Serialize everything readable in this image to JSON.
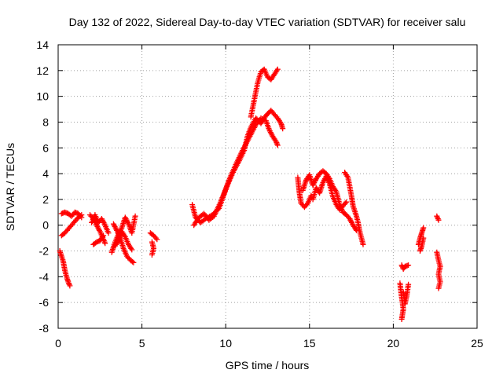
{
  "chart_data": {
    "type": "scatter",
    "title": "Day 132 of 2022, Sidereal Day-to-day VTEC variation (SDTVAR) for receiver salu",
    "xlabel": "GPS time / hours",
    "ylabel": "SDTVAR / TECUs",
    "xlim": [
      0,
      25
    ],
    "ylim": [
      -8,
      14
    ],
    "xticks": [
      "0",
      "5",
      "10",
      "15",
      "20",
      "25"
    ],
    "yticks": [
      "-8",
      "-6",
      "-4",
      "-2",
      "0",
      "2",
      "4",
      "6",
      "8",
      "10",
      "12",
      "14"
    ],
    "grid": true,
    "marker": "plus",
    "color": "#ff0000",
    "series": [
      {
        "name": "SDTVAR",
        "tracks": [
          [
            [
              0.2,
              0.9
            ],
            [
              0.4,
              1.0
            ],
            [
              0.6,
              0.9
            ],
            [
              0.8,
              0.7
            ],
            [
              1.0,
              1.0
            ],
            [
              1.2,
              0.9
            ],
            [
              1.4,
              0.6
            ]
          ],
          [
            [
              0.2,
              -0.8
            ],
            [
              0.4,
              -0.6
            ],
            [
              0.6,
              -0.3
            ],
            [
              0.8,
              0.0
            ],
            [
              1.0,
              0.3
            ],
            [
              1.2,
              0.6
            ],
            [
              1.4,
              0.8
            ]
          ],
          [
            [
              0.1,
              -2.0
            ],
            [
              0.3,
              -2.8
            ],
            [
              0.4,
              -3.5
            ],
            [
              0.5,
              -4.0
            ],
            [
              0.6,
              -4.4
            ],
            [
              0.7,
              -4.7
            ]
          ],
          [
            [
              1.9,
              0.8
            ],
            [
              2.1,
              0.5
            ],
            [
              2.3,
              0.0
            ],
            [
              2.5,
              -0.5
            ],
            [
              2.7,
              -1.1
            ],
            [
              2.8,
              -1.4
            ]
          ],
          [
            [
              2.0,
              0.2
            ],
            [
              2.2,
              0.8
            ],
            [
              2.4,
              0.2
            ],
            [
              2.6,
              0.5
            ],
            [
              2.8,
              0.0
            ],
            [
              3.0,
              -0.6
            ]
          ],
          [
            [
              2.1,
              -1.5
            ],
            [
              2.3,
              -1.3
            ],
            [
              2.5,
              -1.2
            ],
            [
              2.7,
              -0.8
            ]
          ],
          [
            [
              3.2,
              -2.1
            ],
            [
              3.4,
              -1.3
            ],
            [
              3.6,
              -0.7
            ],
            [
              3.8,
              -0.2
            ],
            [
              4.0,
              0.6
            ],
            [
              4.2,
              0.1
            ],
            [
              4.4,
              -0.6
            ],
            [
              4.6,
              0.7
            ]
          ],
          [
            [
              3.3,
              0.1
            ],
            [
              3.5,
              -0.4
            ],
            [
              3.7,
              -1.0
            ],
            [
              3.9,
              -1.8
            ],
            [
              4.1,
              -2.4
            ],
            [
              4.3,
              -2.7
            ],
            [
              4.5,
              -2.9
            ]
          ],
          [
            [
              3.4,
              -1.6
            ],
            [
              3.6,
              -1.2
            ],
            [
              3.8,
              -0.5
            ],
            [
              4.0,
              -0.9
            ],
            [
              4.2,
              -1.5
            ],
            [
              4.4,
              -1.9
            ]
          ],
          [
            [
              5.5,
              -0.6
            ],
            [
              5.7,
              -0.8
            ],
            [
              5.9,
              -1.1
            ]
          ],
          [
            [
              5.6,
              -1.3
            ],
            [
              5.7,
              -1.8
            ],
            [
              5.6,
              -2.3
            ]
          ],
          [
            [
              8.0,
              1.6
            ],
            [
              8.2,
              0.6
            ],
            [
              8.5,
              0.2
            ],
            [
              8.8,
              0.5
            ],
            [
              9.2,
              0.8
            ],
            [
              9.6,
              1.3
            ],
            [
              9.9,
              2.4
            ],
            [
              10.2,
              3.5
            ],
            [
              10.6,
              4.7
            ],
            [
              11.0,
              5.8
            ],
            [
              11.4,
              6.8
            ],
            [
              11.8,
              7.8
            ],
            [
              12.1,
              8.3
            ],
            [
              12.4,
              8.1
            ],
            [
              12.6,
              7.4
            ],
            [
              12.8,
              6.9
            ],
            [
              13.0,
              6.5
            ],
            [
              13.1,
              6.2
            ]
          ],
          [
            [
              8.1,
              0.0
            ],
            [
              8.4,
              0.6
            ],
            [
              8.7,
              0.9
            ],
            [
              9.0,
              0.4
            ],
            [
              9.3,
              0.7
            ],
            [
              9.7,
              1.8
            ],
            [
              10.0,
              2.8
            ],
            [
              10.4,
              4.0
            ],
            [
              10.8,
              5.0
            ],
            [
              11.1,
              5.8
            ],
            [
              11.3,
              6.9
            ],
            [
              11.5,
              7.6
            ],
            [
              11.8,
              8.3
            ],
            [
              12.1,
              7.9
            ],
            [
              12.4,
              8.5
            ],
            [
              12.7,
              8.9
            ],
            [
              12.9,
              8.6
            ],
            [
              13.1,
              8.3
            ],
            [
              13.3,
              7.9
            ],
            [
              13.4,
              7.5
            ]
          ],
          [
            [
              11.5,
              8.4
            ],
            [
              11.7,
              9.7
            ],
            [
              11.9,
              11.0
            ],
            [
              12.1,
              11.9
            ],
            [
              12.3,
              12.1
            ],
            [
              12.5,
              11.5
            ],
            [
              12.7,
              11.3
            ],
            [
              12.9,
              11.7
            ],
            [
              13.1,
              12.1
            ]
          ],
          [
            [
              14.3,
              3.7
            ],
            [
              14.4,
              2.5
            ],
            [
              14.5,
              1.7
            ],
            [
              14.7,
              1.4
            ],
            [
              14.9,
              1.7
            ],
            [
              15.1,
              2.3
            ]
          ],
          [
            [
              14.6,
              2.7
            ],
            [
              14.8,
              3.5
            ],
            [
              15.0,
              3.9
            ],
            [
              15.2,
              3.1
            ],
            [
              15.4,
              3.6
            ],
            [
              15.6,
              4.0
            ],
            [
              15.8,
              4.2
            ],
            [
              16.0,
              4.0
            ],
            [
              16.2,
              3.6
            ],
            [
              16.4,
              3.0
            ],
            [
              16.6,
              2.6
            ],
            [
              16.8,
              1.6
            ],
            [
              17.0,
              1.0
            ],
            [
              17.2,
              0.8
            ],
            [
              17.4,
              0.5
            ],
            [
              17.6,
              0.0
            ],
            [
              17.8,
              -0.4
            ]
          ],
          [
            [
              15.2,
              2.0
            ],
            [
              15.4,
              2.9
            ],
            [
              15.6,
              2.5
            ],
            [
              15.8,
              3.3
            ],
            [
              16.0,
              3.8
            ],
            [
              16.2,
              3.2
            ],
            [
              16.4,
              2.2
            ],
            [
              16.6,
              1.6
            ],
            [
              16.8,
              1.2
            ],
            [
              17.0,
              1.5
            ],
            [
              17.2,
              1.8
            ]
          ],
          [
            [
              17.1,
              4.1
            ],
            [
              17.3,
              3.7
            ],
            [
              17.5,
              2.3
            ],
            [
              17.6,
              1.5
            ],
            [
              17.8,
              0.7
            ],
            [
              17.9,
              0.2
            ],
            [
              18.0,
              -0.5
            ],
            [
              18.1,
              -1.0
            ],
            [
              18.2,
              -1.5
            ]
          ],
          [
            [
              20.4,
              -4.5
            ],
            [
              20.5,
              -5.6
            ],
            [
              20.6,
              -6.5
            ],
            [
              20.5,
              -7.3
            ]
          ],
          [
            [
              20.5,
              -3.1
            ],
            [
              20.6,
              -3.4
            ],
            [
              20.7,
              -3.2
            ],
            [
              20.9,
              -3.1
            ]
          ],
          [
            [
              20.6,
              -5.2
            ],
            [
              20.7,
              -6.1
            ],
            [
              20.8,
              -5.5
            ],
            [
              20.9,
              -4.6
            ]
          ],
          [
            [
              21.5,
              -1.5
            ],
            [
              21.6,
              -1.0
            ],
            [
              21.7,
              -0.6
            ],
            [
              21.8,
              -0.2
            ]
          ],
          [
            [
              21.6,
              -2.0
            ],
            [
              21.7,
              -1.6
            ],
            [
              21.8,
              -1.0
            ]
          ],
          [
            [
              22.6,
              0.7
            ],
            [
              22.7,
              0.4
            ]
          ],
          [
            [
              22.6,
              -2.1
            ],
            [
              22.7,
              -2.7
            ],
            [
              22.8,
              -3.2
            ],
            [
              22.7,
              -3.8
            ],
            [
              22.8,
              -4.4
            ],
            [
              22.7,
              -4.9
            ]
          ]
        ]
      }
    ]
  }
}
